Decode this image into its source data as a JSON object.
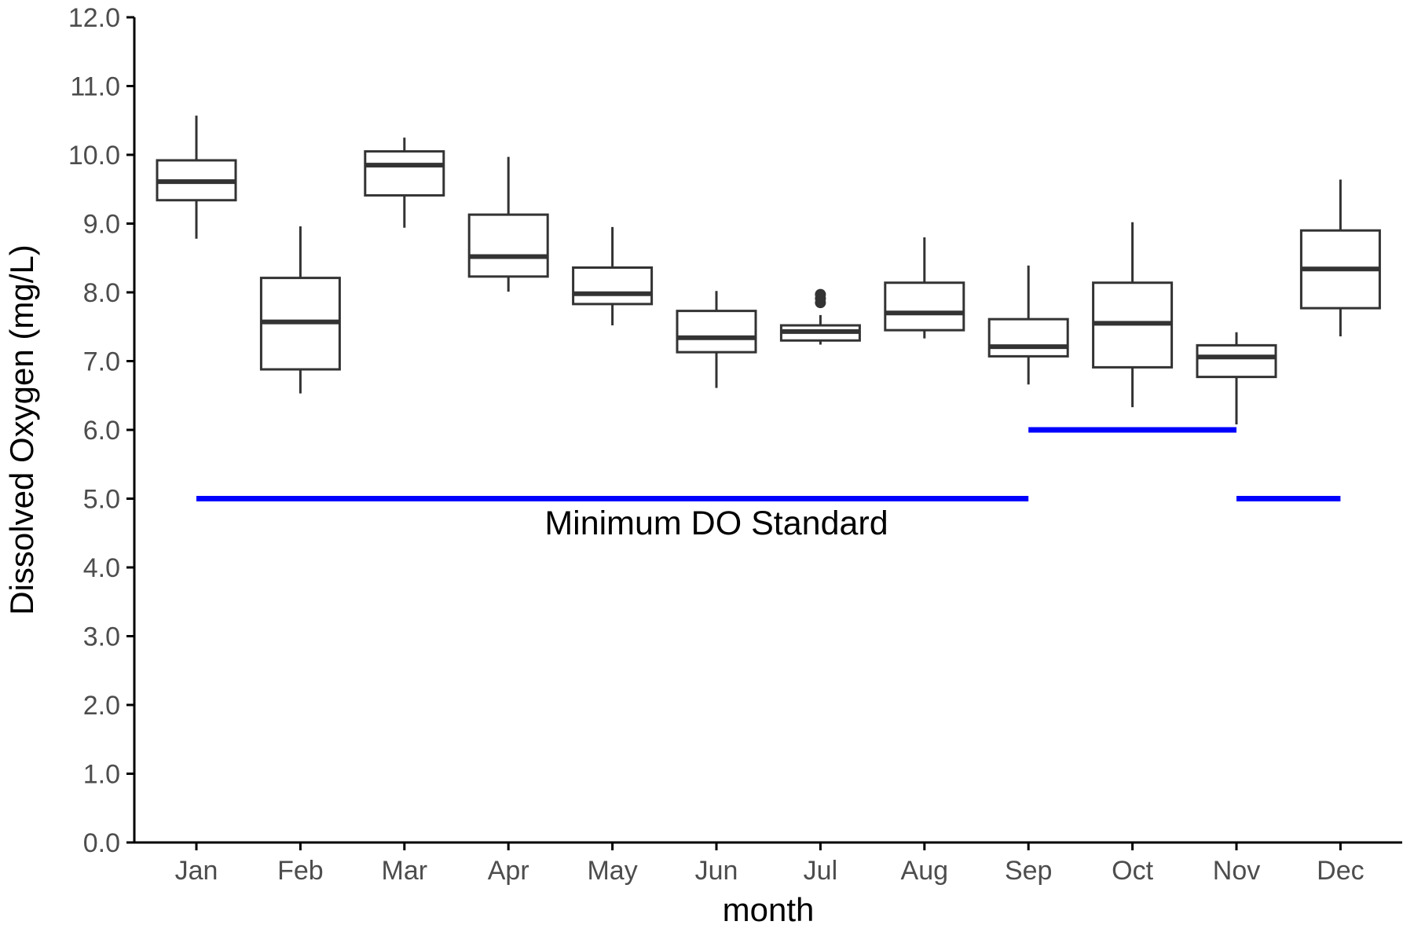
{
  "chart_data": {
    "type": "box",
    "title": "",
    "xlabel": "month",
    "ylabel": "Dissolved Oxygen (mg/L)",
    "ylim": [
      0,
      12
    ],
    "yticks": [
      "0.0",
      "1.0",
      "2.0",
      "3.0",
      "4.0",
      "5.0",
      "6.0",
      "7.0",
      "8.0",
      "9.0",
      "10.0",
      "11.0",
      "12.0"
    ],
    "grid": false,
    "categories": [
      "Jan",
      "Feb",
      "Mar",
      "Apr",
      "May",
      "Jun",
      "Jul",
      "Aug",
      "Sep",
      "Oct",
      "Nov",
      "Dec"
    ],
    "boxes": [
      {
        "month": "Jan",
        "whisker_low": 8.78,
        "q1": 9.34,
        "median": 9.61,
        "q3": 9.92,
        "whisker_high": 10.57,
        "outliers": []
      },
      {
        "month": "Feb",
        "whisker_low": 6.53,
        "q1": 6.88,
        "median": 7.57,
        "q3": 8.21,
        "whisker_high": 8.96,
        "outliers": []
      },
      {
        "month": "Mar",
        "whisker_low": 8.94,
        "q1": 9.41,
        "median": 9.85,
        "q3": 10.05,
        "whisker_high": 10.25,
        "outliers": []
      },
      {
        "month": "Apr",
        "whisker_low": 8.01,
        "q1": 8.23,
        "median": 8.52,
        "q3": 9.13,
        "whisker_high": 9.97,
        "outliers": []
      },
      {
        "month": "May",
        "whisker_low": 7.52,
        "q1": 7.83,
        "median": 7.98,
        "q3": 8.36,
        "whisker_high": 8.95,
        "outliers": []
      },
      {
        "month": "Jun",
        "whisker_low": 6.61,
        "q1": 7.13,
        "median": 7.34,
        "q3": 7.73,
        "whisker_high": 8.02,
        "outliers": []
      },
      {
        "month": "Jul",
        "whisker_low": 7.24,
        "q1": 7.3,
        "median": 7.43,
        "q3": 7.52,
        "whisker_high": 7.67,
        "outliers": [
          7.85,
          7.91,
          7.97
        ]
      },
      {
        "month": "Aug",
        "whisker_low": 7.33,
        "q1": 7.45,
        "median": 7.7,
        "q3": 8.14,
        "whisker_high": 8.8,
        "outliers": []
      },
      {
        "month": "Sep",
        "whisker_low": 6.66,
        "q1": 7.07,
        "median": 7.21,
        "q3": 7.61,
        "whisker_high": 8.39,
        "outliers": []
      },
      {
        "month": "Oct",
        "whisker_low": 6.33,
        "q1": 6.91,
        "median": 7.55,
        "q3": 8.14,
        "whisker_high": 9.02,
        "outliers": []
      },
      {
        "month": "Nov",
        "whisker_low": 6.08,
        "q1": 6.77,
        "median": 7.06,
        "q3": 7.23,
        "whisker_high": 7.42,
        "outliers": []
      },
      {
        "month": "Dec",
        "whisker_low": 7.36,
        "q1": 7.77,
        "median": 8.34,
        "q3": 8.9,
        "whisker_high": 9.64,
        "outliers": []
      }
    ],
    "standard_lines": [
      {
        "from": "Jan",
        "to": "Sep",
        "value": 5.0
      },
      {
        "from": "Sep",
        "to": "Nov",
        "value": 6.0
      },
      {
        "from": "Nov",
        "to": "Dec",
        "value": 5.0
      }
    ],
    "annotation": {
      "text": "Minimum DO Standard",
      "at_month": "Jun",
      "value": 4.65
    },
    "colors": {
      "box": "#333333",
      "standard_line": "#0000ff",
      "axis": "#000000",
      "tick_text": "#4d4d4d"
    }
  }
}
